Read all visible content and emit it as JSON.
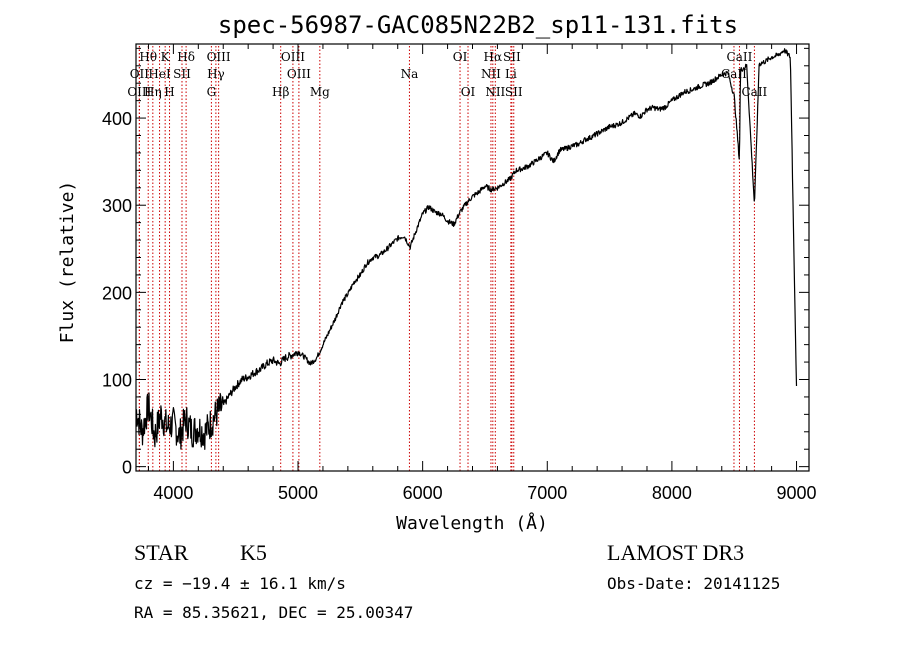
{
  "chart_data": {
    "type": "line",
    "title": "spec-56987-GAC085N22B2_sp11-131.fits",
    "xlabel": "Wavelength (Å)",
    "ylabel": "Flux (relative)",
    "xlim": [
      3700,
      9100
    ],
    "ylim": [
      -5,
      485
    ],
    "x_ticks": [
      4000,
      5000,
      6000,
      7000,
      8000,
      9000
    ],
    "y_ticks": [
      0,
      100,
      200,
      300,
      400
    ],
    "series": [
      {
        "name": "flux",
        "x": [
          3700,
          3750,
          3800,
          3850,
          3900,
          3950,
          4000,
          4050,
          4100,
          4150,
          4200,
          4250,
          4300,
          4350,
          4400,
          4450,
          4500,
          4550,
          4600,
          4650,
          4700,
          4750,
          4800,
          4850,
          4900,
          4950,
          5000,
          5050,
          5100,
          5150,
          5200,
          5250,
          5300,
          5350,
          5400,
          5450,
          5500,
          5550,
          5600,
          5650,
          5700,
          5750,
          5800,
          5850,
          5900,
          5950,
          6000,
          6050,
          6100,
          6150,
          6200,
          6250,
          6300,
          6350,
          6400,
          6450,
          6500,
          6550,
          6600,
          6650,
          6700,
          6750,
          6800,
          6850,
          6900,
          6950,
          7000,
          7050,
          7100,
          7150,
          7200,
          7250,
          7300,
          7350,
          7400,
          7450,
          7500,
          7550,
          7600,
          7650,
          7700,
          7750,
          7800,
          7850,
          7900,
          7950,
          8000,
          8050,
          8100,
          8150,
          8200,
          8250,
          8300,
          8350,
          8400,
          8450,
          8500,
          8542,
          8550,
          8600,
          8662,
          8700,
          8750,
          8800,
          8850,
          8900,
          8950,
          9000
        ],
        "y": [
          65,
          40,
          70,
          35,
          60,
          45,
          50,
          35,
          55,
          40,
          45,
          38,
          50,
          62,
          70,
          82,
          92,
          100,
          103,
          108,
          112,
          118,
          122,
          118,
          125,
          128,
          132,
          126,
          118,
          125,
          140,
          155,
          170,
          188,
          198,
          212,
          220,
          233,
          240,
          242,
          248,
          255,
          262,
          265,
          252,
          272,
          290,
          298,
          292,
          290,
          282,
          278,
          292,
          302,
          310,
          315,
          322,
          318,
          320,
          325,
          330,
          340,
          342,
          345,
          350,
          355,
          360,
          350,
          363,
          365,
          368,
          370,
          375,
          378,
          382,
          386,
          390,
          392,
          395,
          400,
          405,
          402,
          410,
          412,
          410,
          413,
          420,
          425,
          430,
          432,
          435,
          438,
          440,
          445,
          450,
          452,
          425,
          350,
          455,
          460,
          300,
          462,
          465,
          470,
          472,
          478,
          470,
          90
        ]
      }
    ],
    "emission_lines": [
      {
        "name": "Hθ",
        "wavelength": 3798,
        "row": 1
      },
      {
        "name": "OII",
        "wavelength": 3727,
        "row": 2
      },
      {
        "name": "OIII",
        "wavelength": 3727,
        "row": 3
      },
      {
        "name": "K",
        "wavelength": 3934,
        "row": 1
      },
      {
        "name": "Hη",
        "wavelength": 3835,
        "row": 3
      },
      {
        "name": "HeI",
        "wavelength": 3889,
        "row": 2
      },
      {
        "name": "H",
        "wavelength": 3969,
        "row": 3
      },
      {
        "name": "SII",
        "wavelength": 4069,
        "row": 2
      },
      {
        "name": "Hδ",
        "wavelength": 4102,
        "row": 1
      },
      {
        "name": "OIII",
        "wavelength": 4363,
        "row": 1
      },
      {
        "name": "Hγ",
        "wavelength": 4341,
        "row": 2
      },
      {
        "name": "G",
        "wavelength": 4305,
        "row": 3
      },
      {
        "name": "OIII",
        "wavelength": 4959,
        "row": 1
      },
      {
        "name": "OIII",
        "wavelength": 5007,
        "row": 2
      },
      {
        "name": "Hβ",
        "wavelength": 4861,
        "row": 3
      },
      {
        "name": "Mg",
        "wavelength": 5175,
        "row": 3
      },
      {
        "name": "Na",
        "wavelength": 5894,
        "row": 2
      },
      {
        "name": "OI",
        "wavelength": 6300,
        "row": 1
      },
      {
        "name": "OI",
        "wavelength": 6364,
        "row": 3
      },
      {
        "name": "Hα",
        "wavelength": 6563,
        "row": 1
      },
      {
        "name": "SII",
        "wavelength": 6716,
        "row": 1
      },
      {
        "name": "NII",
        "wavelength": 6548,
        "row": 2
      },
      {
        "name": "Li",
        "wavelength": 6708,
        "row": 2
      },
      {
        "name": "NII",
        "wavelength": 6583,
        "row": 3
      },
      {
        "name": "SII",
        "wavelength": 6731,
        "row": 3
      },
      {
        "name": "CaII",
        "wavelength": 8542,
        "row": 1
      },
      {
        "name": "CaII",
        "wavelength": 8498,
        "row": 2
      },
      {
        "name": "CaII",
        "wavelength": 8662,
        "row": 3
      }
    ]
  },
  "info": {
    "class_label": "STAR",
    "subclass_label": "K5",
    "survey_label": "LAMOST DR3",
    "cz_text": "cz = −19.4 ± 16.1 km/s",
    "obs_date_text": "Obs-Date: 20141125",
    "radec_text": "RA =  85.35621, DEC =  25.00347"
  },
  "colors": {
    "line_marker": "#cc0000",
    "spectrum": "#000000",
    "axes": "#000000"
  }
}
